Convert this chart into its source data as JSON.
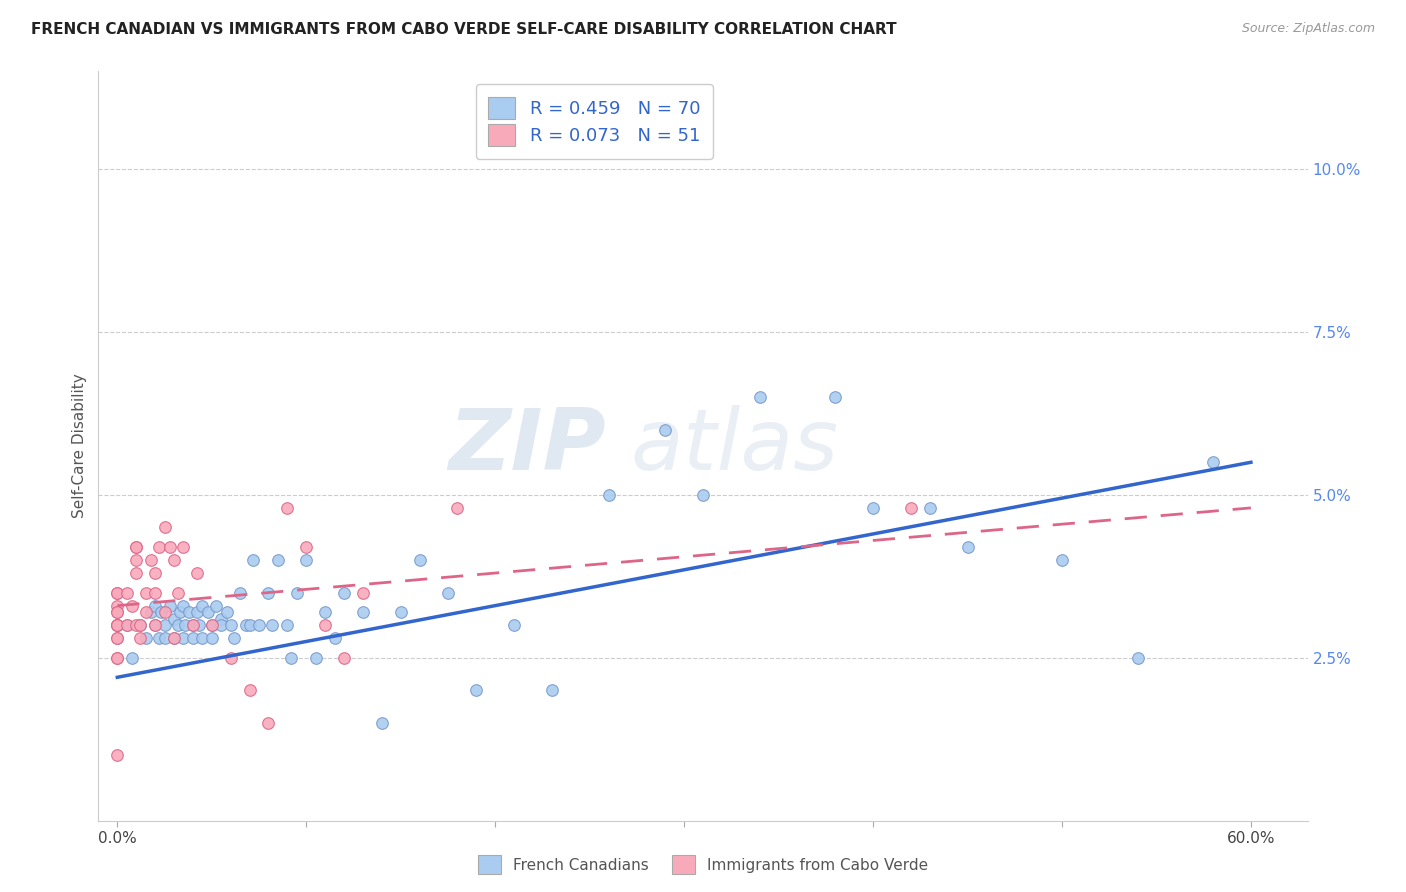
{
  "title": "FRENCH CANADIAN VS IMMIGRANTS FROM CABO VERDE SELF-CARE DISABILITY CORRELATION CHART",
  "source": "Source: ZipAtlas.com",
  "ylabel": "Self-Care Disability",
  "x_tick_positions": [
    0.0,
    0.1,
    0.2,
    0.3,
    0.4,
    0.5,
    0.6
  ],
  "x_tick_labels": [
    "0.0%",
    "",
    "",
    "",
    "",
    "",
    "60.0%"
  ],
  "y_ticks_right": [
    0.025,
    0.05,
    0.075,
    0.1
  ],
  "y_tick_labels_right": [
    "2.5%",
    "5.0%",
    "7.5%",
    "10.0%"
  ],
  "xlim": [
    -0.01,
    0.63
  ],
  "ylim": [
    0.0,
    0.115
  ],
  "blue_R": 0.459,
  "blue_N": 70,
  "pink_R": 0.073,
  "pink_N": 51,
  "blue_color": "#aaccf0",
  "pink_color": "#f8aabb",
  "blue_edge": "#7799cc",
  "pink_edge": "#dd6688",
  "blue_line_color": "#3366cc",
  "pink_line_color": "#dd6688",
  "legend_label_blue": "French Canadians",
  "legend_label_pink": "Immigrants from Cabo Verde",
  "watermark_zip": "ZIP",
  "watermark_atlas": "atlas",
  "blue_scatter_x": [
    0.005,
    0.008,
    0.012,
    0.015,
    0.018,
    0.02,
    0.02,
    0.022,
    0.023,
    0.025,
    0.025,
    0.028,
    0.03,
    0.03,
    0.032,
    0.033,
    0.035,
    0.035,
    0.036,
    0.038,
    0.04,
    0.04,
    0.042,
    0.043,
    0.045,
    0.045,
    0.048,
    0.05,
    0.05,
    0.052,
    0.055,
    0.055,
    0.058,
    0.06,
    0.062,
    0.065,
    0.068,
    0.07,
    0.072,
    0.075,
    0.08,
    0.082,
    0.085,
    0.09,
    0.092,
    0.095,
    0.1,
    0.105,
    0.11,
    0.115,
    0.12,
    0.13,
    0.14,
    0.15,
    0.16,
    0.175,
    0.19,
    0.21,
    0.23,
    0.26,
    0.29,
    0.31,
    0.34,
    0.38,
    0.4,
    0.43,
    0.45,
    0.5,
    0.54,
    0.58
  ],
  "blue_scatter_y": [
    0.03,
    0.025,
    0.03,
    0.028,
    0.032,
    0.03,
    0.033,
    0.028,
    0.032,
    0.03,
    0.028,
    0.033,
    0.031,
    0.028,
    0.03,
    0.032,
    0.028,
    0.033,
    0.03,
    0.032,
    0.03,
    0.028,
    0.032,
    0.03,
    0.033,
    0.028,
    0.032,
    0.03,
    0.028,
    0.033,
    0.031,
    0.03,
    0.032,
    0.03,
    0.028,
    0.035,
    0.03,
    0.03,
    0.04,
    0.03,
    0.035,
    0.03,
    0.04,
    0.03,
    0.025,
    0.035,
    0.04,
    0.025,
    0.032,
    0.028,
    0.035,
    0.032,
    0.015,
    0.032,
    0.04,
    0.035,
    0.02,
    0.03,
    0.02,
    0.05,
    0.06,
    0.05,
    0.065,
    0.065,
    0.048,
    0.048,
    0.042,
    0.04,
    0.025,
    0.055
  ],
  "pink_scatter_x": [
    0.0,
    0.0,
    0.0,
    0.0,
    0.0,
    0.0,
    0.0,
    0.0,
    0.0,
    0.0,
    0.0,
    0.0,
    0.0,
    0.0,
    0.005,
    0.005,
    0.008,
    0.01,
    0.01,
    0.01,
    0.01,
    0.01,
    0.012,
    0.012,
    0.015,
    0.015,
    0.018,
    0.02,
    0.02,
    0.02,
    0.022,
    0.025,
    0.025,
    0.028,
    0.03,
    0.03,
    0.032,
    0.035,
    0.04,
    0.042,
    0.05,
    0.06,
    0.07,
    0.08,
    0.09,
    0.1,
    0.11,
    0.12,
    0.13,
    0.18,
    0.42
  ],
  "pink_scatter_y": [
    0.01,
    0.025,
    0.03,
    0.035,
    0.03,
    0.033,
    0.03,
    0.028,
    0.035,
    0.03,
    0.032,
    0.028,
    0.025,
    0.032,
    0.035,
    0.03,
    0.033,
    0.04,
    0.042,
    0.042,
    0.038,
    0.03,
    0.028,
    0.03,
    0.035,
    0.032,
    0.04,
    0.038,
    0.035,
    0.03,
    0.042,
    0.032,
    0.045,
    0.042,
    0.028,
    0.04,
    0.035,
    0.042,
    0.03,
    0.038,
    0.03,
    0.025,
    0.02,
    0.015,
    0.048,
    0.042,
    0.03,
    0.025,
    0.035,
    0.048,
    0.048
  ]
}
